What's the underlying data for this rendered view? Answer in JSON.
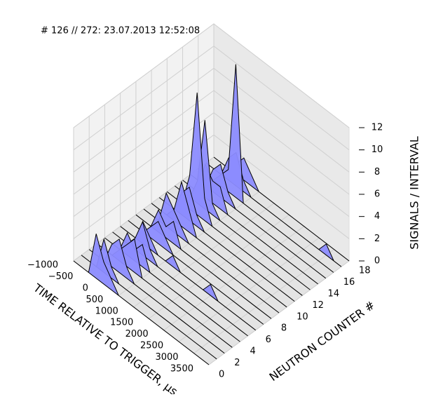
{
  "chart_data": {
    "type": "surface3d",
    "title": "# 126 // 272: 23.07.2013 12:52:08",
    "xlabel": "TIME RELATIVE TO TRIGGER, µs",
    "ylabel": "NEUTRON COUNTER #",
    "zlabel": "SIGNALS / INTERVAL",
    "color": "#8c8cff",
    "x": [
      -1000,
      -750,
      -500,
      -250,
      0,
      250,
      500,
      750,
      1000,
      1250,
      1500,
      1750,
      2000,
      2250,
      2500,
      2750,
      3000,
      3250,
      3500
    ],
    "y": [
      0,
      1,
      2,
      3,
      4,
      5,
      6,
      7,
      8,
      9,
      10,
      11,
      12,
      13,
      14,
      15,
      16,
      17,
      18
    ],
    "values": [
      [
        0,
        0,
        0,
        4,
        2,
        1,
        0,
        0,
        0,
        0,
        0,
        0,
        0,
        0,
        0,
        0,
        0,
        0,
        0
      ],
      [
        0,
        0,
        0,
        3,
        1,
        0,
        0,
        0,
        0,
        0,
        0,
        0,
        0,
        0,
        0,
        0,
        0,
        0,
        0
      ],
      [
        0,
        0,
        0,
        2,
        3,
        1,
        0,
        0,
        0,
        0,
        0,
        0,
        0,
        0,
        0,
        0,
        0,
        0,
        0
      ],
      [
        0,
        0,
        0,
        1,
        2,
        3,
        0,
        0,
        0,
        0,
        0,
        0,
        0,
        0,
        0,
        0,
        0,
        0,
        0
      ],
      [
        0,
        0,
        0,
        2,
        1,
        2,
        0,
        0,
        0,
        0,
        0,
        0,
        0,
        0,
        0,
        0,
        0,
        0,
        0
      ],
      [
        0,
        0,
        0,
        1,
        3,
        1,
        0,
        0,
        0,
        0,
        0,
        0,
        0,
        0,
        0,
        0,
        0,
        0,
        0
      ],
      [
        0,
        0,
        0,
        2,
        1,
        0,
        0,
        1,
        0,
        0,
        0,
        0,
        1,
        0,
        0,
        0,
        0,
        0,
        0
      ],
      [
        0,
        0,
        0,
        1,
        2,
        1,
        0,
        0,
        0,
        0,
        0,
        0,
        0,
        0,
        0,
        0,
        0,
        0,
        0
      ],
      [
        0,
        0,
        0,
        2,
        1,
        2,
        0,
        0,
        0,
        0,
        0,
        0,
        0,
        0,
        0,
        0,
        0,
        0,
        0
      ],
      [
        0,
        0,
        0,
        3,
        2,
        1,
        0,
        0,
        0,
        0,
        0,
        0,
        0,
        0,
        0,
        0,
        0,
        0,
        0
      ],
      [
        0,
        0,
        0,
        1,
        4,
        2,
        0,
        0,
        0,
        0,
        0,
        0,
        0,
        0,
        0,
        0,
        0,
        0,
        0
      ],
      [
        0,
        0,
        0,
        2,
        3,
        1,
        0,
        0,
        0,
        0,
        0,
        0,
        0,
        0,
        0,
        0,
        0,
        0,
        0
      ],
      [
        0,
        0,
        0,
        3,
        11,
        2,
        0,
        0,
        0,
        0,
        0,
        0,
        0,
        0,
        0,
        0,
        0,
        0,
        0
      ],
      [
        0,
        0,
        0,
        2,
        8,
        1,
        0,
        0,
        0,
        0,
        0,
        0,
        0,
        0,
        0,
        0,
        0,
        0,
        0
      ],
      [
        0,
        0,
        0,
        3,
        2,
        2,
        0,
        0,
        0,
        0,
        0,
        0,
        0,
        0,
        0,
        0,
        0,
        0,
        0
      ],
      [
        0,
        0,
        0,
        2,
        3,
        1,
        0,
        0,
        0,
        0,
        0,
        0,
        0,
        0,
        0,
        0,
        0,
        0,
        0
      ],
      [
        0,
        0,
        0,
        1,
        2,
        12,
        0,
        0,
        0,
        0,
        0,
        0,
        0,
        0,
        0,
        0,
        0,
        0,
        0
      ],
      [
        0,
        0,
        0,
        2,
        3,
        1,
        0,
        0,
        0,
        0,
        0,
        0,
        0,
        0,
        0,
        0,
        1,
        0,
        0
      ],
      [
        0,
        0,
        0,
        1,
        2,
        1,
        0,
        0,
        0,
        0,
        0,
        0,
        0,
        0,
        0,
        0,
        0,
        0,
        0
      ]
    ],
    "xlim": [
      -1000,
      3500
    ],
    "xticks": [
      {
        "value": -1000,
        "label": "−1000"
      },
      {
        "value": -500,
        "label": "−500"
      },
      0,
      500,
      1000,
      1500,
      2000,
      2500,
      3000,
      3500
    ],
    "ylim": [
      0,
      18
    ],
    "yticks": [
      0,
      2,
      4,
      6,
      8,
      10,
      12,
      14,
      16,
      18
    ],
    "zlim": [
      0,
      12
    ],
    "zticks": [
      0,
      2,
      4,
      6,
      8,
      10,
      12
    ],
    "grid": true
  }
}
